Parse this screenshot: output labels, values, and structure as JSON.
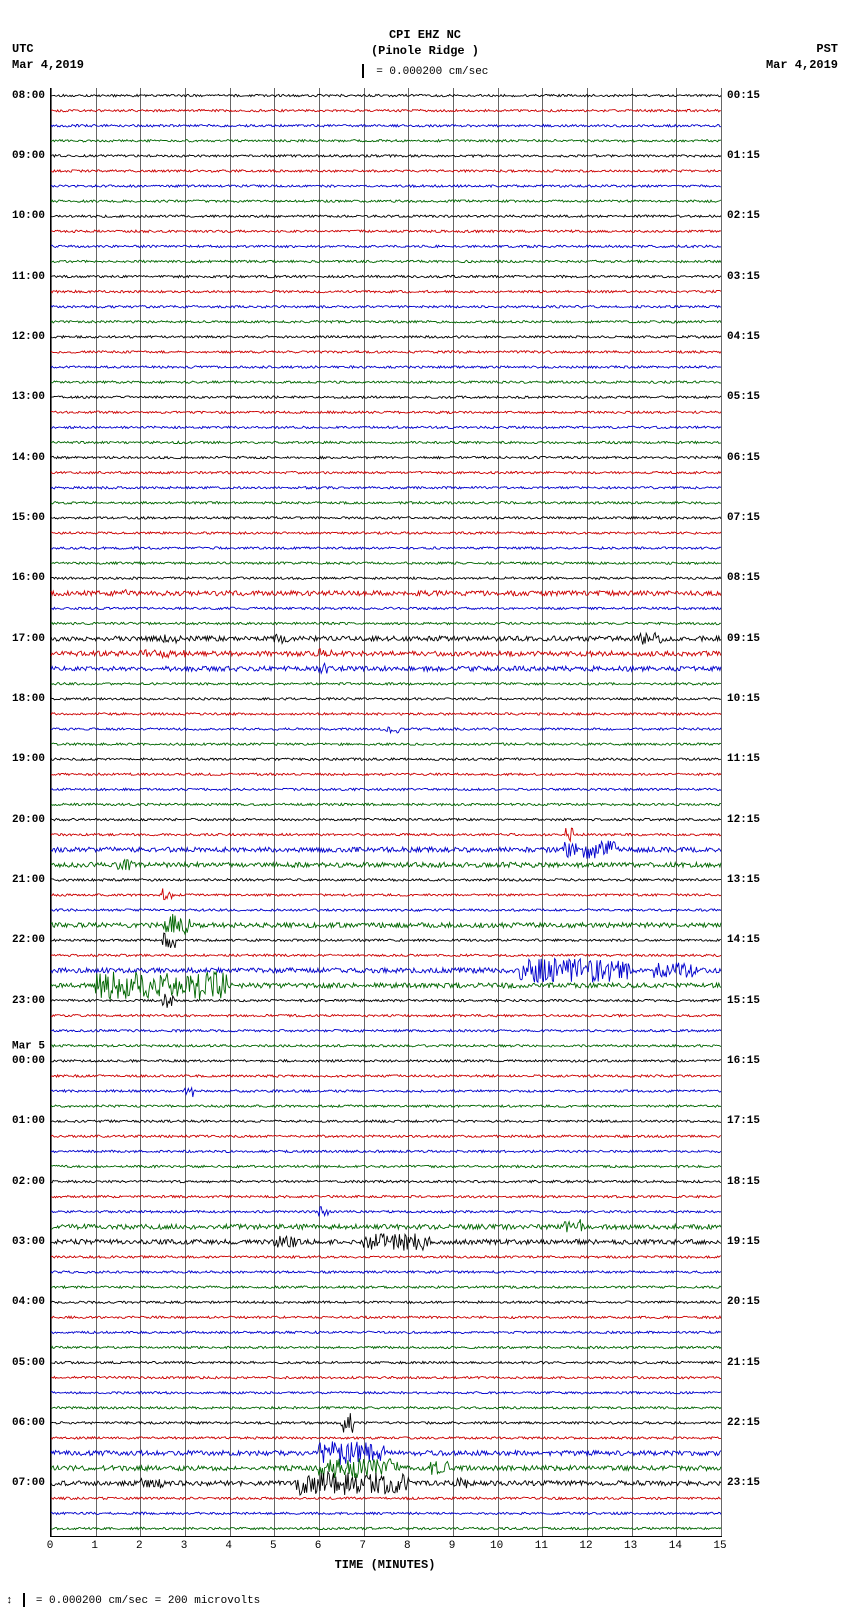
{
  "header": {
    "line1": "CPI EHZ NC",
    "line2": "(Pinole Ridge )"
  },
  "scale_center": "= 0.000200 cm/sec",
  "utc": {
    "tz": "UTC",
    "date": "Mar 4,2019"
  },
  "pst": {
    "tz": "PST",
    "date": "Mar 4,2019"
  },
  "footer": "= 0.000200 cm/sec =    200 microvolts",
  "xaxis": {
    "label": "TIME (MINUTES)",
    "ticks": [
      0,
      1,
      2,
      3,
      4,
      5,
      6,
      7,
      8,
      9,
      10,
      11,
      12,
      13,
      14,
      15
    ],
    "min": 0,
    "max": 15
  },
  "plot": {
    "grid_color": "#666666",
    "background": "#ffffff",
    "trace_colors_cycle": [
      "#000000",
      "#cc0000",
      "#0000cc",
      "#006600"
    ],
    "stroke_width": 0.9,
    "noise_amp_small": 1.2,
    "noise_amp_med": 2.5,
    "noise_amp_large": 9.0
  },
  "traces": [
    {
      "utc": "08:00",
      "pst": "00:15",
      "amp": "small"
    },
    {
      "utc": "",
      "pst": "",
      "amp": "small"
    },
    {
      "utc": "",
      "pst": "",
      "amp": "small"
    },
    {
      "utc": "",
      "pst": "",
      "amp": "small"
    },
    {
      "utc": "09:00",
      "pst": "01:15",
      "amp": "small"
    },
    {
      "utc": "",
      "pst": "",
      "amp": "small"
    },
    {
      "utc": "",
      "pst": "",
      "amp": "small"
    },
    {
      "utc": "",
      "pst": "",
      "amp": "small"
    },
    {
      "utc": "10:00",
      "pst": "02:15",
      "amp": "small"
    },
    {
      "utc": "",
      "pst": "",
      "amp": "small"
    },
    {
      "utc": "",
      "pst": "",
      "amp": "small"
    },
    {
      "utc": "",
      "pst": "",
      "amp": "small"
    },
    {
      "utc": "11:00",
      "pst": "03:15",
      "amp": "small"
    },
    {
      "utc": "",
      "pst": "",
      "amp": "small"
    },
    {
      "utc": "",
      "pst": "",
      "amp": "small"
    },
    {
      "utc": "",
      "pst": "",
      "amp": "small"
    },
    {
      "utc": "12:00",
      "pst": "04:15",
      "amp": "small"
    },
    {
      "utc": "",
      "pst": "",
      "amp": "small"
    },
    {
      "utc": "",
      "pst": "",
      "amp": "small"
    },
    {
      "utc": "",
      "pst": "",
      "amp": "small"
    },
    {
      "utc": "13:00",
      "pst": "05:15",
      "amp": "small"
    },
    {
      "utc": "",
      "pst": "",
      "amp": "small"
    },
    {
      "utc": "",
      "pst": "",
      "amp": "small"
    },
    {
      "utc": "",
      "pst": "",
      "amp": "small"
    },
    {
      "utc": "14:00",
      "pst": "06:15",
      "amp": "small"
    },
    {
      "utc": "",
      "pst": "",
      "amp": "small"
    },
    {
      "utc": "",
      "pst": "",
      "amp": "small"
    },
    {
      "utc": "",
      "pst": "",
      "amp": "small"
    },
    {
      "utc": "15:00",
      "pst": "07:15",
      "amp": "small"
    },
    {
      "utc": "",
      "pst": "",
      "amp": "small"
    },
    {
      "utc": "",
      "pst": "",
      "amp": "small"
    },
    {
      "utc": "",
      "pst": "",
      "amp": "small"
    },
    {
      "utc": "16:00",
      "pst": "08:15",
      "amp": "small"
    },
    {
      "utc": "",
      "pst": "",
      "amp": "med",
      "events": [
        {
          "t": 1.5,
          "w": 0.3,
          "a": 4
        }
      ]
    },
    {
      "utc": "",
      "pst": "",
      "amp": "small"
    },
    {
      "utc": "",
      "pst": "",
      "amp": "small"
    },
    {
      "utc": "17:00",
      "pst": "09:15",
      "amp": "med",
      "events": [
        {
          "t": 2.5,
          "w": 0.4,
          "a": 5
        },
        {
          "t": 5.0,
          "w": 0.3,
          "a": 5
        },
        {
          "t": 13.0,
          "w": 0.8,
          "a": 6
        }
      ]
    },
    {
      "utc": "",
      "pst": "",
      "amp": "med",
      "events": [
        {
          "t": 2.0,
          "w": 1.0,
          "a": 4
        },
        {
          "t": 6.0,
          "w": 0.3,
          "a": 5
        }
      ]
    },
    {
      "utc": "",
      "pst": "",
      "amp": "med",
      "events": [
        {
          "t": 6.0,
          "w": 0.2,
          "a": 6
        }
      ]
    },
    {
      "utc": "",
      "pst": "",
      "amp": "small"
    },
    {
      "utc": "18:00",
      "pst": "10:15",
      "amp": "small"
    },
    {
      "utc": "",
      "pst": "",
      "amp": "small"
    },
    {
      "utc": "",
      "pst": "",
      "amp": "small",
      "events": [
        {
          "t": 7.5,
          "w": 0.3,
          "a": 4
        }
      ]
    },
    {
      "utc": "",
      "pst": "",
      "amp": "small"
    },
    {
      "utc": "19:00",
      "pst": "11:15",
      "amp": "small"
    },
    {
      "utc": "",
      "pst": "",
      "amp": "small"
    },
    {
      "utc": "",
      "pst": "",
      "amp": "small"
    },
    {
      "utc": "",
      "pst": "",
      "amp": "small"
    },
    {
      "utc": "20:00",
      "pst": "12:15",
      "amp": "small"
    },
    {
      "utc": "",
      "pst": "",
      "amp": "small",
      "events": [
        {
          "t": 11.5,
          "w": 0.2,
          "a": 7
        }
      ]
    },
    {
      "utc": "",
      "pst": "",
      "amp": "med",
      "events": [
        {
          "t": 11.5,
          "w": 1.2,
          "a": 9
        }
      ]
    },
    {
      "utc": "",
      "pst": "",
      "amp": "med",
      "events": [
        {
          "t": 1.5,
          "w": 0.3,
          "a": 6
        }
      ]
    },
    {
      "utc": "21:00",
      "pst": "13:15",
      "amp": "small"
    },
    {
      "utc": "",
      "pst": "",
      "amp": "small",
      "events": [
        {
          "t": 2.5,
          "w": 0.2,
          "a": 7
        }
      ]
    },
    {
      "utc": "",
      "pst": "",
      "amp": "small"
    },
    {
      "utc": "",
      "pst": "",
      "amp": "med",
      "events": [
        {
          "t": 2.5,
          "w": 0.6,
          "a": 12
        }
      ]
    },
    {
      "utc": "22:00",
      "pst": "14:15",
      "amp": "small",
      "events": [
        {
          "t": 2.5,
          "w": 0.3,
          "a": 8
        }
      ]
    },
    {
      "utc": "",
      "pst": "",
      "amp": "small"
    },
    {
      "utc": "",
      "pst": "",
      "amp": "med",
      "events": [
        {
          "t": 10.5,
          "w": 2.5,
          "a": 12
        },
        {
          "t": 13.5,
          "w": 1.0,
          "a": 8
        }
      ]
    },
    {
      "utc": "",
      "pst": "",
      "amp": "med",
      "events": [
        {
          "t": 1.0,
          "w": 3.0,
          "a": 14
        }
      ]
    },
    {
      "utc": "23:00",
      "pst": "15:15",
      "amp": "small",
      "events": [
        {
          "t": 2.5,
          "w": 0.3,
          "a": 8
        }
      ]
    },
    {
      "utc": "",
      "pst": "",
      "amp": "small"
    },
    {
      "utc": "",
      "pst": "",
      "amp": "small"
    },
    {
      "utc": "",
      "pst": "",
      "amp": "small"
    },
    {
      "utc": "00:00",
      "pst": "16:15",
      "amp": "small",
      "day": "Mar 5"
    },
    {
      "utc": "",
      "pst": "",
      "amp": "small"
    },
    {
      "utc": "",
      "pst": "",
      "amp": "small",
      "events": [
        {
          "t": 3.0,
          "w": 0.2,
          "a": 6
        }
      ]
    },
    {
      "utc": "",
      "pst": "",
      "amp": "small"
    },
    {
      "utc": "01:00",
      "pst": "17:15",
      "amp": "small"
    },
    {
      "utc": "",
      "pst": "",
      "amp": "small"
    },
    {
      "utc": "",
      "pst": "",
      "amp": "small"
    },
    {
      "utc": "",
      "pst": "",
      "amp": "small"
    },
    {
      "utc": "02:00",
      "pst": "18:15",
      "amp": "small"
    },
    {
      "utc": "",
      "pst": "",
      "amp": "small"
    },
    {
      "utc": "",
      "pst": "",
      "amp": "small",
      "events": [
        {
          "t": 6.0,
          "w": 0.2,
          "a": 5
        }
      ]
    },
    {
      "utc": "",
      "pst": "",
      "amp": "med",
      "events": [
        {
          "t": 11.5,
          "w": 0.4,
          "a": 8
        }
      ]
    },
    {
      "utc": "03:00",
      "pst": "19:15",
      "amp": "med",
      "events": [
        {
          "t": 5.0,
          "w": 0.5,
          "a": 6
        },
        {
          "t": 7.0,
          "w": 1.5,
          "a": 9
        }
      ]
    },
    {
      "utc": "",
      "pst": "",
      "amp": "small"
    },
    {
      "utc": "",
      "pst": "",
      "amp": "small"
    },
    {
      "utc": "",
      "pst": "",
      "amp": "small"
    },
    {
      "utc": "04:00",
      "pst": "20:15",
      "amp": "small"
    },
    {
      "utc": "",
      "pst": "",
      "amp": "small"
    },
    {
      "utc": "",
      "pst": "",
      "amp": "small"
    },
    {
      "utc": "",
      "pst": "",
      "amp": "small"
    },
    {
      "utc": "05:00",
      "pst": "21:15",
      "amp": "small"
    },
    {
      "utc": "",
      "pst": "",
      "amp": "small"
    },
    {
      "utc": "",
      "pst": "",
      "amp": "small"
    },
    {
      "utc": "",
      "pst": "",
      "amp": "small"
    },
    {
      "utc": "06:00",
      "pst": "22:15",
      "amp": "small",
      "events": [
        {
          "t": 6.5,
          "w": 0.3,
          "a": 10
        }
      ]
    },
    {
      "utc": "",
      "pst": "",
      "amp": "small"
    },
    {
      "utc": "",
      "pst": "",
      "amp": "med",
      "events": [
        {
          "t": 6.0,
          "w": 1.5,
          "a": 12
        }
      ]
    },
    {
      "utc": "",
      "pst": "",
      "amp": "med",
      "events": [
        {
          "t": 6.0,
          "w": 1.8,
          "a": 10
        },
        {
          "t": 8.5,
          "w": 0.4,
          "a": 7
        }
      ]
    },
    {
      "utc": "07:00",
      "pst": "23:15",
      "amp": "med",
      "events": [
        {
          "t": 2.0,
          "w": 0.5,
          "a": 5
        },
        {
          "t": 5.5,
          "w": 2.5,
          "a": 12
        },
        {
          "t": 9.0,
          "w": 0.3,
          "a": 6
        }
      ]
    },
    {
      "utc": "",
      "pst": "",
      "amp": "small"
    },
    {
      "utc": "",
      "pst": "",
      "amp": "small"
    },
    {
      "utc": "",
      "pst": "",
      "amp": "small"
    }
  ]
}
